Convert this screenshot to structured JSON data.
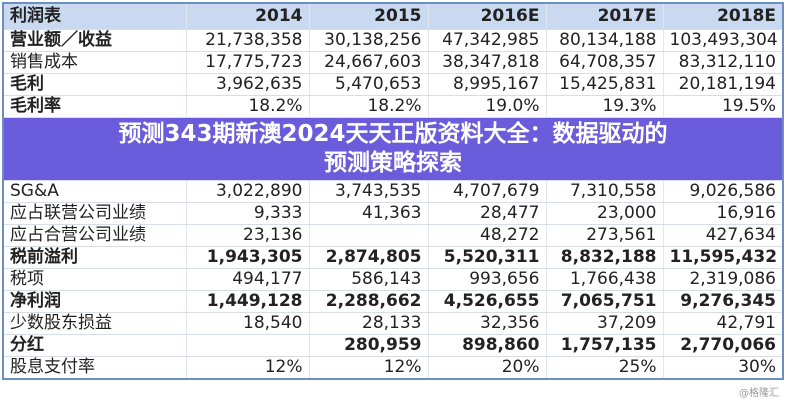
{
  "table": {
    "headers": [
      "利润表",
      "2014",
      "2015",
      "2016E",
      "2017E",
      "2018E"
    ],
    "rows": [
      {
        "label": "营业额／收益",
        "values": [
          "21,738,358",
          "30,138,256",
          "47,342,985",
          "80,134,188",
          "103,493,304"
        ]
      },
      {
        "label": "销售成本",
        "values": [
          "17,775,723",
          "24,667,603",
          "38,347,818",
          "64,708,357",
          "83,312,110"
        ]
      },
      {
        "label": "毛利",
        "values": [
          "3,962,635",
          "5,470,653",
          "8,995,167",
          "15,425,831",
          "20,181,194"
        ]
      },
      {
        "label": "毛利率",
        "values": [
          "18.2%",
          "18.2%",
          "19.0%",
          "19.3%",
          "19.5%"
        ]
      },
      {
        "label": "SG&A",
        "values": [
          "3,022,890",
          "3,743,535",
          "4,707,679",
          "7,310,558",
          "9,026,586"
        ]
      },
      {
        "label": "应占联营公司业绩",
        "values": [
          "9,333",
          "41,363",
          "28,477",
          "23,000",
          "16,916"
        ]
      },
      {
        "label": "应占合营公司业绩",
        "values": [
          "23,136",
          "",
          "48,272",
          "273,561",
          "427,634"
        ]
      },
      {
        "label": "税前溢利",
        "values": [
          "1,943,305",
          "2,874,805",
          "5,520,311",
          "8,832,188",
          "11,595,432"
        ]
      },
      {
        "label": "税项",
        "values": [
          "494,177",
          "586,143",
          "993,656",
          "1,766,438",
          "2,319,086"
        ]
      },
      {
        "label": "净利润",
        "values": [
          "1,449,128",
          "2,288,662",
          "4,526,655",
          "7,065,751",
          "9,276,345"
        ]
      },
      {
        "label": "少数股东损益",
        "values": [
          "18,540",
          "28,133",
          "32,356",
          "37,209",
          "42,791"
        ]
      },
      {
        "label": "分红",
        "values": [
          "",
          "280,959",
          "898,860",
          "1,757,135",
          "2,770,066"
        ]
      },
      {
        "label": "股息支付率",
        "values": [
          "12%",
          "12%",
          "20%",
          "25%",
          "30%"
        ]
      }
    ]
  },
  "banner": {
    "line1": "预测343期新澳2024天天正版资料大全：数据驱动的",
    "line2": "预测策略探索"
  },
  "watermark": "@格隆汇"
}
